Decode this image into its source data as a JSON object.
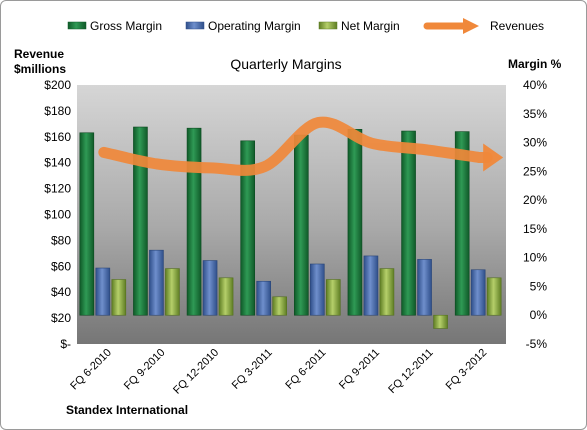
{
  "chart_data": {
    "type": "bar",
    "title": "Quarterly Margins",
    "company": "Standex International",
    "left_axis": {
      "label_line1": "Revenue",
      "label_line2": "$millions",
      "ticks": [
        "$-",
        "$20",
        "$40",
        "$60",
        "$80",
        "$100",
        "$120",
        "$140",
        "$160",
        "$180",
        "$200"
      ],
      "range": [
        0,
        200
      ]
    },
    "right_axis": {
      "label": "Margin %",
      "ticks": [
        "-5%",
        "0%",
        "5%",
        "10%",
        "15%",
        "20%",
        "25%",
        "30%",
        "35%",
        "40%"
      ],
      "range": [
        -5,
        40
      ]
    },
    "categories": [
      "FQ 6-2010",
      "FQ 9-2010",
      "FQ 12-2010",
      "FQ 3-2011",
      "FQ 6-2011",
      "FQ 9-2011",
      "FQ 12-2011",
      "FQ 3-2012"
    ],
    "series": [
      {
        "name": "Gross Margin",
        "axis": "right",
        "color": "#1e7a3c",
        "values": [
          31.7,
          32.7,
          32.5,
          30.3,
          31.3,
          32.3,
          32.0,
          31.9
        ]
      },
      {
        "name": "Operating Margin",
        "axis": "right",
        "color": "#4a6fb0",
        "values": [
          8.2,
          11.3,
          9.5,
          5.9,
          8.9,
          10.3,
          9.7,
          7.9
        ]
      },
      {
        "name": "Net Margin",
        "axis": "right",
        "color": "#8fb04a",
        "values": [
          6.2,
          8.1,
          6.5,
          3.2,
          6.2,
          8.1,
          -2.3,
          6.5
        ]
      },
      {
        "name": "Revenues",
        "axis": "left",
        "color": "#f0883a",
        "type": "line",
        "values": [
          148,
          139,
          136,
          137,
          171,
          155,
          150,
          144
        ]
      }
    ],
    "legend_position": "top",
    "grid": false
  }
}
